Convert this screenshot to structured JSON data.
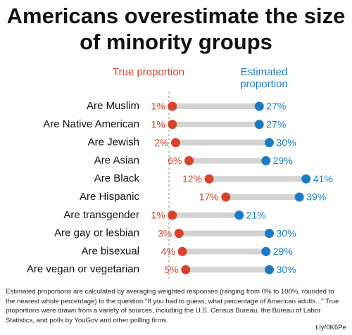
{
  "chart_data": {
    "type": "dumbbell",
    "title": "Americans overestimate the size of minority groups",
    "categories": [
      "Are Muslim",
      "Are Native American",
      "Are Jewish",
      "Are Asian",
      "Are Black",
      "Are Hispanic",
      "Are transgender",
      "Are gay or lesbian",
      "Are bisexual",
      "Are vegan or vegetarian"
    ],
    "series": [
      {
        "name": "True proportion",
        "color": "#d9412b",
        "values": [
          1,
          1,
          2,
          6,
          12,
          17,
          1,
          3,
          4,
          5
        ],
        "value_labels": [
          "1%",
          "1%",
          "2%",
          "6%",
          "12%",
          "17%",
          "1%",
          "3%",
          "4%",
          "5%"
        ]
      },
      {
        "name": "Estimated proportion",
        "color": "#1a7dc4",
        "values": [
          27,
          27,
          30,
          29,
          41,
          39,
          21,
          30,
          29,
          30
        ],
        "value_labels": [
          "27%",
          "27%",
          "30%",
          "29%",
          "41%",
          "39%",
          "21%",
          "30%",
          "29%",
          "30%"
        ]
      }
    ],
    "xlim": [
      0,
      50
    ],
    "footnote": "Estimated proportions are calculated by averaging weighted responses (ranging from 0% to 100%, rounded to the nearest whole percentage) to the question \"If you had to guess, what percentage of American adults...\" True proportions were drawn from a variety of sources, including the U.S. Census Bureau, the Bureau of Labor Statistics, and polls by YouGov and other polling firms.",
    "source": "t.ly/0K6Pe"
  }
}
